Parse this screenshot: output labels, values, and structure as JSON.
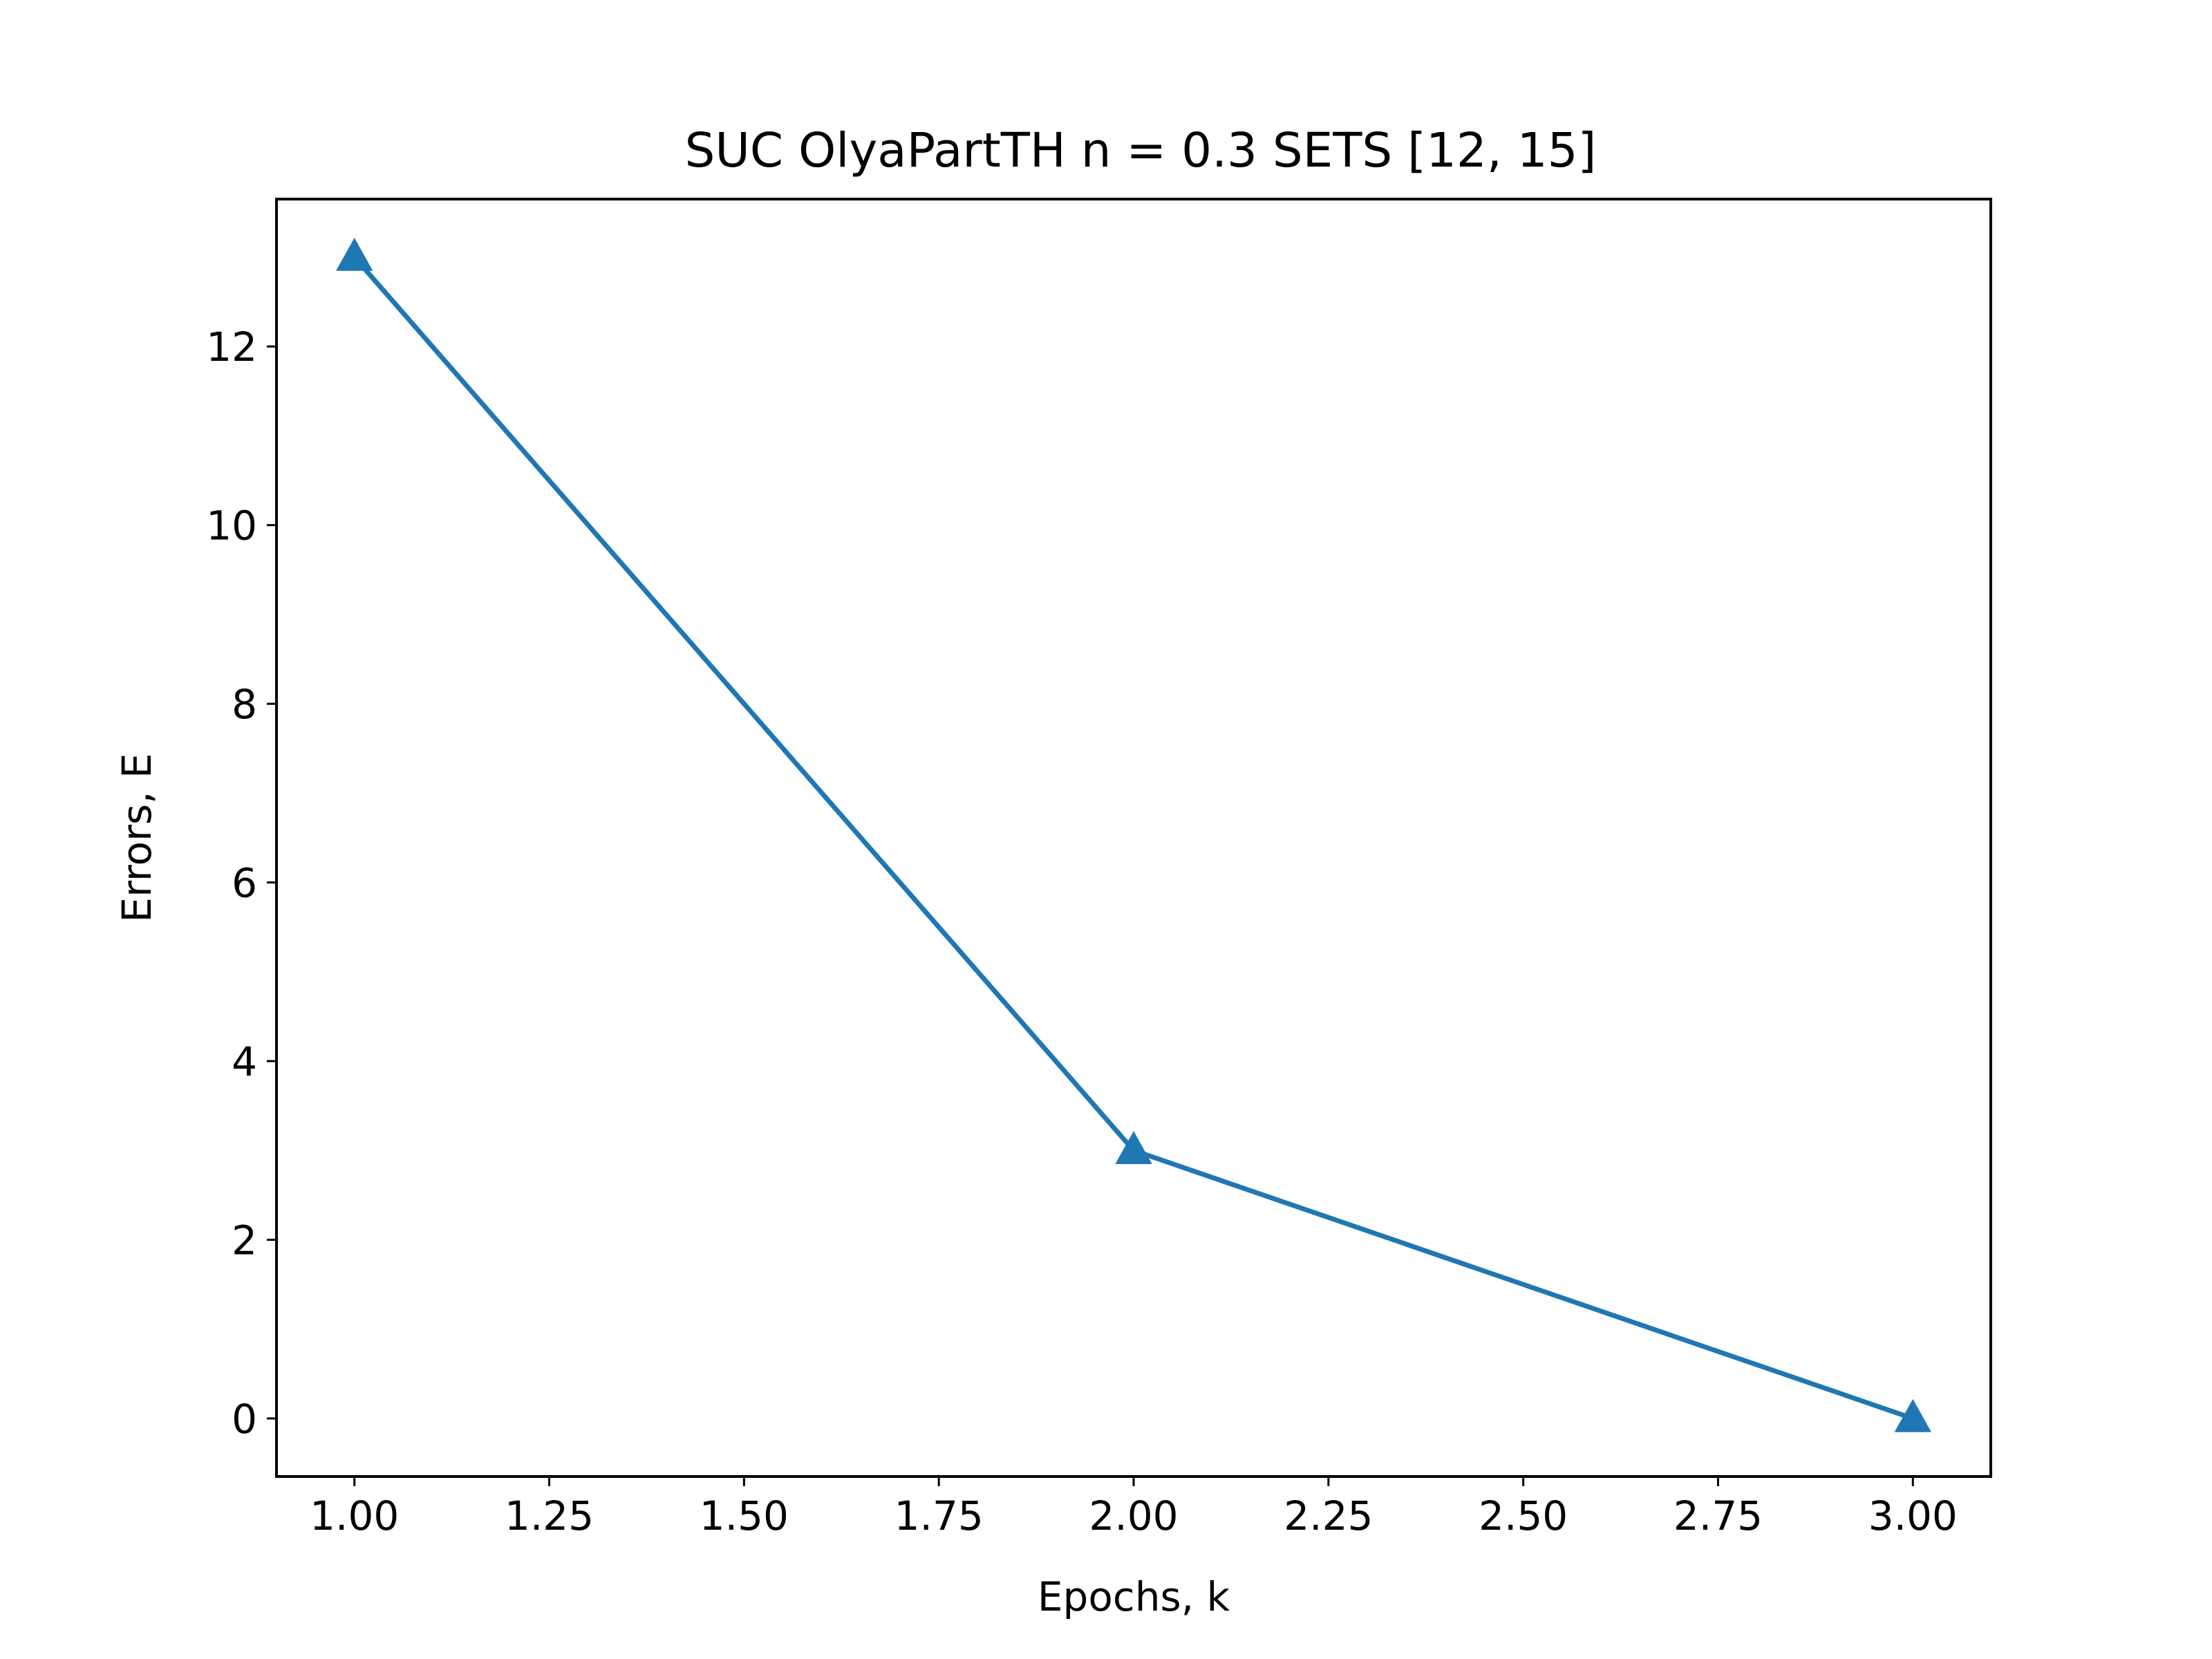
{
  "chart_data": {
    "type": "line",
    "title": "SUC OlyaPartTH n = 0.3 SETS [12, 15]",
    "xlabel": "Epochs, k",
    "ylabel": "Errors, E",
    "xlim": [
      0.9,
      3.1
    ],
    "ylim": [
      -0.65,
      13.65
    ],
    "x_ticks": [
      1.0,
      1.25,
      1.5,
      1.75,
      2.0,
      2.25,
      2.5,
      2.75,
      3.0
    ],
    "x_tick_labels": [
      "1.00",
      "1.25",
      "1.50",
      "1.75",
      "2.00",
      "2.25",
      "2.50",
      "2.75",
      "3.00"
    ],
    "y_ticks": [
      0,
      2,
      4,
      6,
      8,
      10,
      12
    ],
    "y_tick_labels": [
      "0",
      "2",
      "4",
      "6",
      "8",
      "10",
      "12"
    ],
    "grid": false,
    "series": [
      {
        "x": [
          1,
          2,
          3
        ],
        "y": [
          13,
          3,
          0
        ],
        "marker": "triangle-up",
        "color": "#1f77b4"
      }
    ]
  }
}
